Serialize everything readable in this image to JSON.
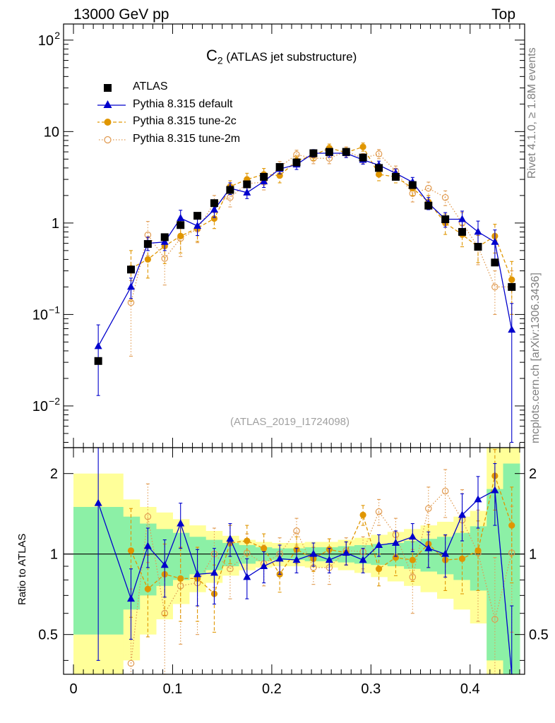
{
  "header": {
    "left": "13000 GeV pp",
    "right": "Top"
  },
  "side_labels": {
    "top": "Rivet 4.1.0, ≥ 1.8M events",
    "bottom": "mcplots.cern.ch [arXiv:1306.3436]"
  },
  "title": {
    "symbol": "C",
    "subscript": "2",
    "text": "(ATLAS jet substructure)"
  },
  "analysis_id": "(ATLAS_2019_I1724098)",
  "ratio_ylabel": "Ratio to ATLAS",
  "colors": {
    "data": "#000000",
    "default": "#0000cc",
    "tune2c": "#e09600",
    "tune2m": "#e09a50",
    "band_inner": "#8cf0a6",
    "band_outer": "#ffff99"
  },
  "chart_data": [
    {
      "type": "scatter",
      "scale": "log",
      "xlim": [
        -0.01,
        0.455
      ],
      "ylim": [
        0.0035,
        150
      ],
      "yticks": [
        {
          "value": 0.01,
          "base": "10",
          "exp": "−2"
        },
        {
          "value": 0.1,
          "base": "10",
          "exp": "−1"
        },
        {
          "value": 1,
          "label": "1"
        },
        {
          "value": 10,
          "label": "10"
        },
        {
          "value": 100,
          "base": "10",
          "exp": "2"
        }
      ],
      "x": [
        0.025,
        0.058,
        0.075,
        0.092,
        0.108,
        0.125,
        0.142,
        0.158,
        0.175,
        0.192,
        0.208,
        0.225,
        0.242,
        0.258,
        0.275,
        0.292,
        0.308,
        0.325,
        0.342,
        0.358,
        0.375,
        0.392,
        0.408,
        0.425,
        0.442
      ],
      "series": [
        {
          "name": "ATLAS",
          "marker": "square",
          "values": [
            0.031,
            0.31,
            0.59,
            0.7,
            0.95,
            1.2,
            1.65,
            2.3,
            2.65,
            3.2,
            4.1,
            4.6,
            5.8,
            6.0,
            6.0,
            5.2,
            4.0,
            3.2,
            2.6,
            1.55,
            1.1,
            0.8,
            0.55,
            0.37,
            0.2
          ],
          "err": [
            0.0,
            0.02,
            0.03,
            0.04,
            0.05,
            0.05,
            0.06,
            0.08,
            0.1,
            0.1,
            0.15,
            0.2,
            0.2,
            0.2,
            0.2,
            0.2,
            0.15,
            0.1,
            0.1,
            0.06,
            0.05,
            0.04,
            0.03,
            0.03,
            0.02
          ]
        },
        {
          "name": "Pythia 8.315 default",
          "marker": "triangle",
          "line": "solid",
          "values": [
            0.045,
            0.2,
            0.6,
            0.62,
            1.13,
            0.93,
            1.4,
            2.4,
            2.15,
            2.85,
            3.9,
            4.35,
            5.8,
            5.8,
            5.8,
            4.9,
            4.3,
            3.5,
            2.8,
            1.65,
            1.1,
            1.1,
            0.8,
            0.62,
            0.068
          ],
          "err": [
            0.032,
            0.05,
            0.1,
            0.12,
            0.25,
            0.2,
            0.25,
            0.35,
            0.3,
            0.4,
            0.45,
            0.5,
            0.55,
            0.55,
            0.6,
            0.5,
            0.45,
            0.4,
            0.35,
            0.25,
            0.2,
            0.25,
            0.25,
            0.22,
            0.064
          ]
        },
        {
          "name": "Pythia 8.315 tune-2c",
          "marker": "circle",
          "line": "dashed",
          "values": [
            null,
            0.32,
            0.4,
            0.56,
            0.72,
            0.88,
            1.12,
            2.5,
            3.0,
            3.4,
            3.3,
            4.8,
            5.5,
            6.6,
            5.9,
            6.8,
            3.4,
            3.2,
            2.4,
            1.7,
            1.0,
            0.75,
            0.55,
            0.72,
            0.24
          ],
          "err": [
            0,
            0.18,
            0.15,
            0.2,
            0.25,
            0.25,
            0.25,
            0.4,
            0.5,
            0.55,
            0.55,
            0.6,
            0.65,
            0.7,
            0.7,
            0.7,
            0.5,
            0.45,
            0.4,
            0.3,
            0.25,
            0.2,
            0.18,
            0.25,
            0.14
          ]
        },
        {
          "name": "Pythia 8.315 tune-2m",
          "marker": "open-circle",
          "line": "dotted",
          "values": [
            null,
            0.135,
            0.74,
            0.41,
            0.68,
            0.86,
            1.65,
            1.9,
            2.7,
            2.8,
            4.1,
            5.6,
            5.1,
            5.1,
            6.1,
            5.1,
            5.7,
            3.7,
            2.1,
            2.4,
            1.9,
            1.0,
            0.55,
            0.2,
            0.2
          ],
          "err": [
            0,
            0.1,
            0.3,
            0.2,
            0.25,
            0.25,
            0.35,
            0.4,
            0.5,
            0.5,
            0.6,
            0.65,
            0.65,
            0.65,
            0.7,
            0.65,
            0.65,
            0.5,
            0.4,
            0.4,
            0.35,
            0.3,
            0.2,
            0.1,
            0.1
          ]
        }
      ]
    },
    {
      "type": "scatter",
      "scale": "log",
      "xlabel": "",
      "ylabel": "Ratio to ATLAS",
      "xlim": [
        -0.01,
        0.455
      ],
      "ylim": [
        0.355,
        2.5
      ],
      "yticks": [
        {
          "value": 0.5,
          "label": "0.5"
        },
        {
          "value": 1,
          "label": "1"
        },
        {
          "value": 2,
          "label": "2"
        }
      ],
      "xticks": [
        {
          "value": 0,
          "label": "0"
        },
        {
          "value": 0.1,
          "label": "0.1"
        },
        {
          "value": 0.2,
          "label": "0.2"
        },
        {
          "value": 0.3,
          "label": "0.3"
        },
        {
          "value": 0.4,
          "label": "0.4"
        }
      ],
      "bin_edges": [
        0.0,
        0.05,
        0.0667,
        0.0833,
        0.1,
        0.1167,
        0.1333,
        0.15,
        0.1667,
        0.1833,
        0.2,
        0.2167,
        0.2333,
        0.25,
        0.2667,
        0.2833,
        0.3,
        0.3167,
        0.3333,
        0.35,
        0.3667,
        0.3833,
        0.4,
        0.4167,
        0.4333,
        0.45
      ],
      "band_inner": [
        [
          0.5,
          1.5
        ],
        [
          0.62,
          1.38
        ],
        [
          0.7,
          1.3
        ],
        [
          0.76,
          1.24
        ],
        [
          0.8,
          1.2
        ],
        [
          0.84,
          1.16
        ],
        [
          0.87,
          1.13
        ],
        [
          0.9,
          1.1
        ],
        [
          0.92,
          1.08
        ],
        [
          0.94,
          1.06
        ],
        [
          0.95,
          1.05
        ],
        [
          0.95,
          1.05
        ],
        [
          0.94,
          1.06
        ],
        [
          0.94,
          1.06
        ],
        [
          0.93,
          1.07
        ],
        [
          0.92,
          1.08
        ],
        [
          0.91,
          1.09
        ],
        [
          0.9,
          1.1
        ],
        [
          0.88,
          1.12
        ],
        [
          0.86,
          1.14
        ],
        [
          0.84,
          1.16
        ],
        [
          0.8,
          1.2
        ],
        [
          0.73,
          1.27
        ],
        [
          0.4,
          1.75
        ],
        [
          0.3,
          2.18
        ]
      ],
      "band_outer": [
        [
          0.33,
          2.0
        ],
        [
          0.4,
          1.6
        ],
        [
          0.5,
          1.5
        ],
        [
          0.57,
          1.43
        ],
        [
          0.65,
          1.35
        ],
        [
          0.72,
          1.28
        ],
        [
          0.78,
          1.22
        ],
        [
          0.83,
          1.17
        ],
        [
          0.87,
          1.13
        ],
        [
          0.89,
          1.11
        ],
        [
          0.9,
          1.1
        ],
        [
          0.9,
          1.1
        ],
        [
          0.89,
          1.11
        ],
        [
          0.89,
          1.11
        ],
        [
          0.87,
          1.13
        ],
        [
          0.85,
          1.15
        ],
        [
          0.82,
          1.18
        ],
        [
          0.79,
          1.21
        ],
        [
          0.76,
          1.24
        ],
        [
          0.72,
          1.28
        ],
        [
          0.68,
          1.32
        ],
        [
          0.62,
          1.38
        ],
        [
          0.55,
          1.45
        ],
        [
          0.3,
          2.5
        ],
        [
          0.3,
          2.5
        ]
      ],
      "series": [
        {
          "name": "Pythia 8.315 default",
          "values": [
            1.55,
            0.68,
            1.07,
            0.91,
            1.3,
            0.84,
            0.85,
            1.14,
            0.82,
            0.9,
            0.96,
            0.95,
            1.0,
            0.95,
            1.01,
            0.95,
            1.08,
            1.1,
            1.16,
            1.05,
            1.0,
            1.4,
            1.6,
            1.73,
            0.34
          ],
          "err": [
            1.15,
            0.2,
            0.18,
            0.22,
            0.25,
            0.2,
            0.2,
            0.16,
            0.14,
            0.12,
            0.12,
            0.1,
            0.1,
            0.1,
            0.1,
            0.1,
            0.1,
            0.12,
            0.14,
            0.16,
            0.18,
            0.28,
            0.35,
            0.45,
            0.3
          ]
        },
        {
          "name": "Pythia 8.315 tune-2c",
          "values": [
            null,
            1.03,
            0.74,
            0.84,
            0.81,
            0.81,
            0.71,
            1.1,
            1.12,
            1.05,
            0.84,
            1.04,
            0.96,
            1.04,
            1.01,
            1.4,
            0.88,
            0.97,
            0.95,
            1.09,
            0.95,
            0.96,
            1.03,
            1.96,
            1.28
          ],
          "err": [
            0,
            0.45,
            0.25,
            0.25,
            0.25,
            0.25,
            0.2,
            0.18,
            0.16,
            0.14,
            0.12,
            0.12,
            0.1,
            0.1,
            0.1,
            0.12,
            0.12,
            0.14,
            0.16,
            0.2,
            0.22,
            0.25,
            0.3,
            0.5,
            0.5
          ]
        },
        {
          "name": "Pythia 8.315 tune-2m",
          "values": [
            null,
            0.39,
            1.38,
            0.6,
            0.76,
            0.78,
            1.0,
            0.88,
            1.01,
            0.92,
            1.0,
            1.22,
            0.89,
            0.89,
            1.03,
            1.02,
            1.44,
            1.18,
            0.82,
            1.48,
            1.72,
            1.34,
            1.01,
            0.57,
            1.01
          ],
          "err": [
            0,
            0.35,
            0.45,
            0.3,
            0.3,
            0.28,
            0.25,
            0.2,
            0.18,
            0.16,
            0.15,
            0.14,
            0.12,
            0.12,
            0.12,
            0.14,
            0.16,
            0.18,
            0.22,
            0.3,
            0.35,
            0.4,
            0.45,
            0.4,
            0.5
          ]
        }
      ]
    }
  ]
}
